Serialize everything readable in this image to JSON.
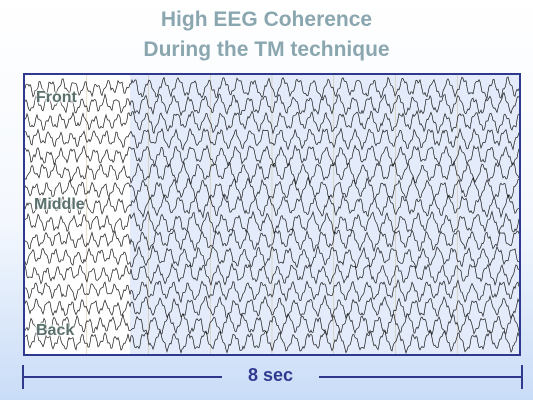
{
  "title": {
    "line1": "High EEG Coherence",
    "line2": "During the TM technique"
  },
  "regions": {
    "front": "Front",
    "middle": "Middle",
    "back": "Back"
  },
  "scale": {
    "label": "8 sec"
  },
  "eeg": {
    "channel_count": 16,
    "trace_color": "#1a1a1a",
    "highlight_color": "#e4ecfb",
    "frame_color": "#2f3a8f"
  }
}
